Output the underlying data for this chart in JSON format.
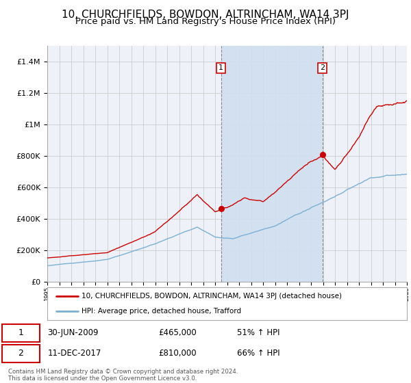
{
  "title": "10, CHURCHFIELDS, BOWDON, ALTRINCHAM, WA14 3PJ",
  "subtitle": "Price paid vs. HM Land Registry's House Price Index (HPI)",
  "legend_line1": "10, CHURCHFIELDS, BOWDON, ALTRINCHAM, WA14 3PJ (detached house)",
  "legend_line2": "HPI: Average price, detached house, Trafford",
  "annotation1_label": "1",
  "annotation1_date": "30-JUN-2009",
  "annotation1_price": "£465,000",
  "annotation1_hpi": "51% ↑ HPI",
  "annotation2_label": "2",
  "annotation2_date": "11-DEC-2017",
  "annotation2_price": "£810,000",
  "annotation2_hpi": "66% ↑ HPI",
  "footer": "Contains HM Land Registry data © Crown copyright and database right 2024.\nThis data is licensed under the Open Government Licence v3.0.",
  "red_color": "#cc0000",
  "blue_color": "#7bafd4",
  "annotation_box_color": "#cc0000",
  "background_color": "#ffffff",
  "grid_color": "#cccccc",
  "plot_bg_color": "#eef2f8",
  "shade_color": "#d0dff0",
  "ylim": [
    0,
    1500000
  ],
  "yticks": [
    0,
    200000,
    400000,
    600000,
    800000,
    1000000,
    1200000,
    1400000
  ],
  "ytick_labels": [
    "£0",
    "£200K",
    "£400K",
    "£600K",
    "£800K",
    "£1M",
    "£1.2M",
    "£1.4M"
  ],
  "year_start": 1995,
  "year_end": 2025,
  "sale1_year": 2009.5,
  "sale1_price": 465000,
  "sale2_year": 2017.95,
  "sale2_price": 810000,
  "title_fontsize": 11,
  "subtitle_fontsize": 9.5
}
